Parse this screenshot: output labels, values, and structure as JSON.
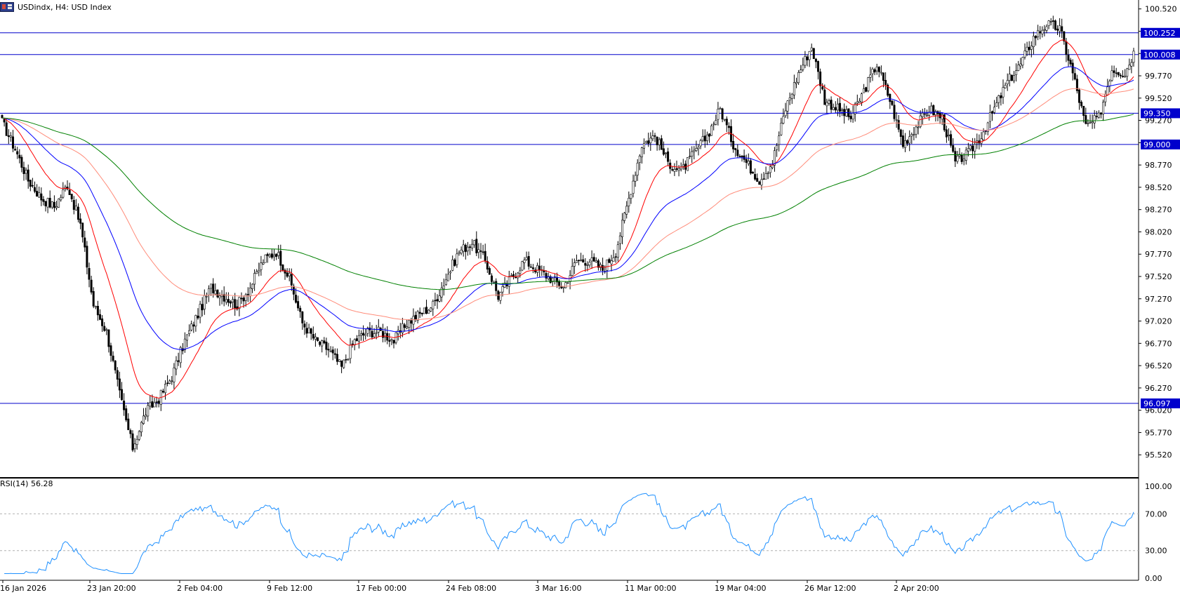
{
  "header": {
    "symbol_label": "USDindx, H4:  USD Index",
    "icon": "instrument-flag-icon"
  },
  "rsi_label": "RSI(14) 56.28",
  "colors": {
    "bull_candle": "#ffffff",
    "bear_candle": "#000000",
    "wick": "#000000",
    "ma_fast": "#ff0000",
    "ma_mid": "#0000ff",
    "ma_slow": "#ff8c7a",
    "ma_long": "#008000",
    "hline": "#0000cc",
    "label_bg": "#0000cc",
    "rsi_line": "#1e90ff",
    "axis": "#000000",
    "grid_dash": "#b0b0b0"
  },
  "chart_data": [
    {
      "type": "candlestick",
      "title": "USDindx, H4:  USD Index",
      "ylim": [
        95.27,
        100.62
      ],
      "y_ticks": [
        "100.520",
        "100.270",
        "100.020",
        "99.770",
        "99.520",
        "99.270",
        "99.020",
        "98.770",
        "98.520",
        "98.270",
        "98.020",
        "97.770",
        "97.520",
        "97.270",
        "97.020",
        "96.770",
        "96.520",
        "96.270",
        "96.020",
        "95.770",
        "95.520"
      ],
      "x_labels": [
        "16 Jan 2026",
        "23 Jan 20:00",
        "2 Feb 04:00",
        "9 Feb 12:00",
        "17 Feb 00:00",
        "24 Feb 08:00",
        "3 Mar 16:00",
        "11 Mar 00:00",
        "19 Mar 04:00",
        "26 Mar 12:00",
        "2 Apr 20:00"
      ],
      "horizontal_levels": [
        "100.252",
        "100.008",
        "99.350",
        "99.000",
        "96.097"
      ],
      "close_anchors": [
        [
          0,
          99.25
        ],
        [
          6,
          98.95
        ],
        [
          12,
          98.6
        ],
        [
          18,
          98.4
        ],
        [
          24,
          98.3
        ],
        [
          30,
          98.55
        ],
        [
          36,
          98.1
        ],
        [
          42,
          97.2
        ],
        [
          48,
          96.9
        ],
        [
          54,
          96.2
        ],
        [
          60,
          95.6
        ],
        [
          66,
          96.0
        ],
        [
          72,
          96.15
        ],
        [
          78,
          96.4
        ],
        [
          84,
          96.8
        ],
        [
          90,
          97.1
        ],
        [
          96,
          97.4
        ],
        [
          102,
          97.3
        ],
        [
          108,
          97.2
        ],
        [
          114,
          97.4
        ],
        [
          120,
          97.7
        ],
        [
          126,
          97.8
        ],
        [
          132,
          97.5
        ],
        [
          138,
          97.0
        ],
        [
          144,
          96.8
        ],
        [
          150,
          96.7
        ],
        [
          156,
          96.5
        ],
        [
          162,
          96.8
        ],
        [
          168,
          96.9
        ],
        [
          174,
          96.9
        ],
        [
          180,
          96.8
        ],
        [
          186,
          97.0
        ],
        [
          192,
          97.1
        ],
        [
          198,
          97.2
        ],
        [
          204,
          97.5
        ],
        [
          210,
          97.8
        ],
        [
          216,
          97.9
        ],
        [
          222,
          97.7
        ],
        [
          228,
          97.3
        ],
        [
          234,
          97.5
        ],
        [
          240,
          97.7
        ],
        [
          246,
          97.6
        ],
        [
          252,
          97.5
        ],
        [
          258,
          97.4
        ],
        [
          264,
          97.7
        ],
        [
          270,
          97.7
        ],
        [
          276,
          97.6
        ],
        [
          282,
          97.8
        ],
        [
          288,
          98.4
        ],
        [
          294,
          99.0
        ],
        [
          300,
          99.1
        ],
        [
          306,
          98.8
        ],
        [
          312,
          98.7
        ],
        [
          318,
          98.9
        ],
        [
          324,
          99.1
        ],
        [
          330,
          99.4
        ],
        [
          336,
          99.0
        ],
        [
          342,
          98.8
        ],
        [
          348,
          98.6
        ],
        [
          354,
          98.8
        ],
        [
          360,
          99.4
        ],
        [
          366,
          99.8
        ],
        [
          372,
          100.1
        ],
        [
          378,
          99.5
        ],
        [
          384,
          99.4
        ],
        [
          390,
          99.3
        ],
        [
          396,
          99.6
        ],
        [
          402,
          99.9
        ],
        [
          408,
          99.5
        ],
        [
          414,
          99.0
        ],
        [
          420,
          99.2
        ],
        [
          426,
          99.4
        ],
        [
          432,
          99.3
        ],
        [
          438,
          98.8
        ],
        [
          444,
          98.9
        ],
        [
          450,
          99.1
        ],
        [
          456,
          99.4
        ],
        [
          462,
          99.7
        ],
        [
          468,
          99.9
        ],
        [
          474,
          100.2
        ],
        [
          480,
          100.35
        ],
        [
          486,
          100.3
        ],
        [
          492,
          99.8
        ],
        [
          498,
          99.2
        ],
        [
          504,
          99.3
        ],
        [
          510,
          99.85
        ],
        [
          516,
          99.8
        ],
        [
          520,
          100.03
        ]
      ],
      "bars": 521,
      "moving_averages": [
        {
          "label": "fast",
          "period": 20,
          "color": "#ff0000"
        },
        {
          "label": "mid",
          "period": 50,
          "color": "#0000ff"
        },
        {
          "label": "slow",
          "period": 100,
          "color": "#ff8c7a"
        },
        {
          "label": "long",
          "period": 200,
          "color": "#008000"
        }
      ]
    },
    {
      "type": "line",
      "title": "RSI(14) 56.28",
      "ylim": [
        0,
        100
      ],
      "y_ticks": [
        "100.00",
        "70.00",
        "30.00",
        "0.00"
      ],
      "levels": [
        70,
        30
      ],
      "last_value": 56.28
    }
  ]
}
